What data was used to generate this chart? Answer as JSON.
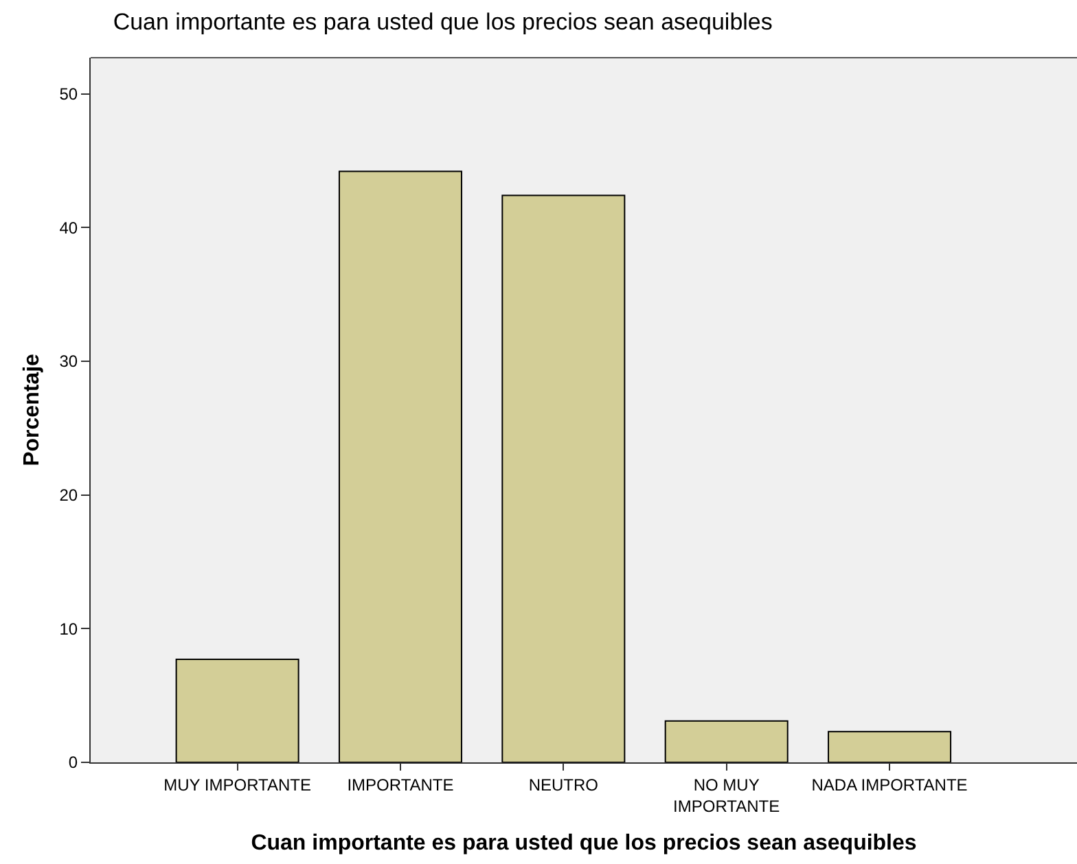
{
  "chart_data": {
    "type": "bar",
    "title": "Cuan importante es para usted que los precios sean asequibles",
    "xlabel": "Cuan importante es para usted que los precios sean asequibles",
    "ylabel": "Porcentaje",
    "categories": [
      "MUY IMPORTANTE",
      "IMPORTANTE",
      "NEUTRO",
      "NO MUY\nIMPORTANTE",
      "NADA IMPORTANTE"
    ],
    "values": [
      7.7,
      44.2,
      42.4,
      3.1,
      2.3
    ],
    "color": "#d3ce97",
    "ylim": [
      0,
      52.7
    ],
    "yticks": [
      0,
      10,
      20,
      30,
      40,
      50
    ],
    "grid": false,
    "legend": false
  }
}
